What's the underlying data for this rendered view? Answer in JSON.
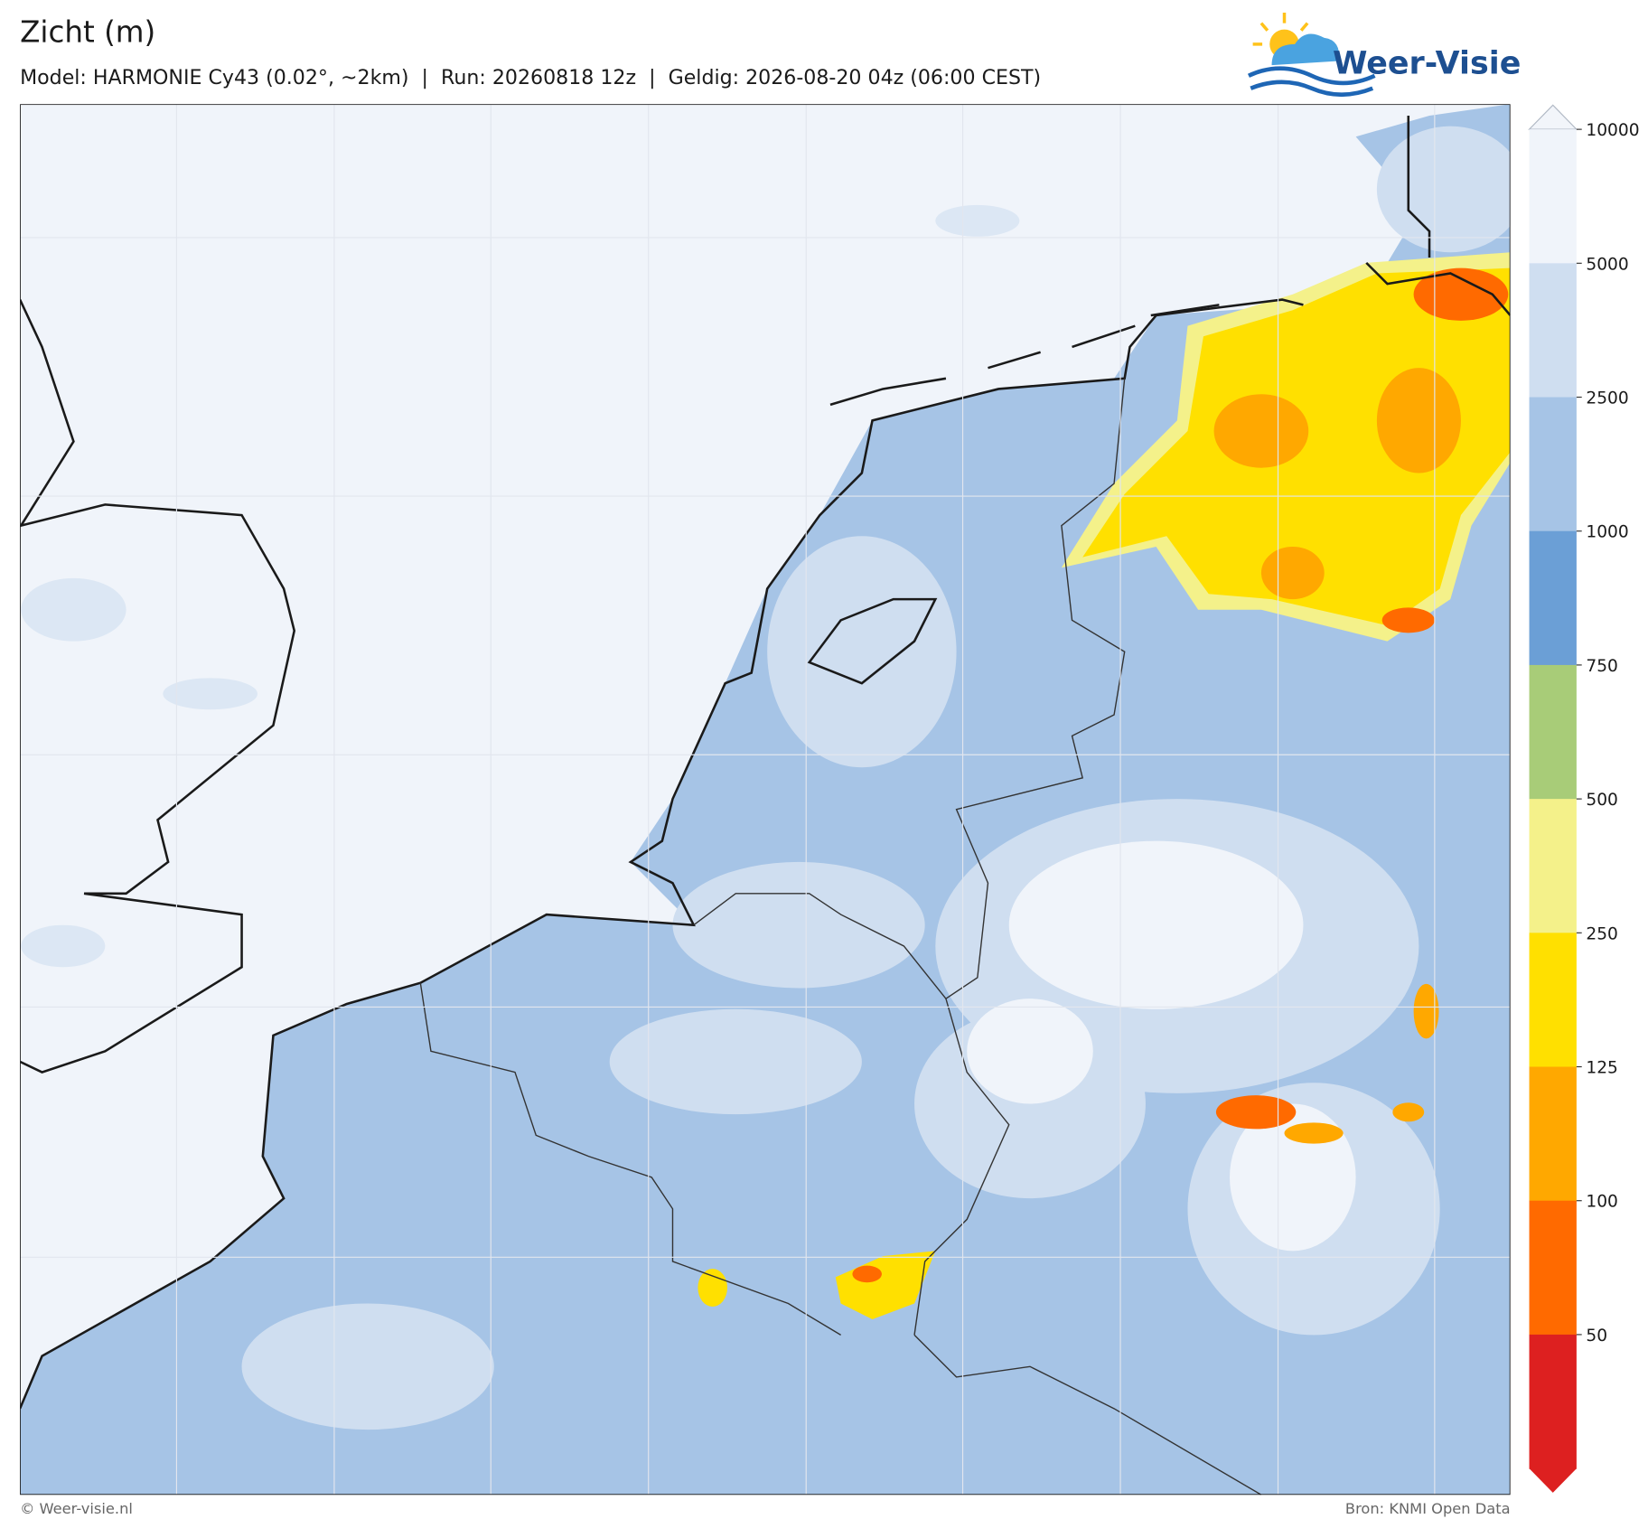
{
  "header": {
    "title": "Zicht (m)",
    "subtitle": "Model: HARMONIE Cy43 (0.02°, ~2km)  |  Run: 20260818 12z  |  Geldig: 2026-08-20 04z (06:00 CEST)",
    "logo": "Weer-Visie"
  },
  "colorbar": {
    "ticks": [
      10000,
      5000,
      2500,
      1000,
      750,
      500,
      250,
      125,
      100,
      50
    ],
    "colors": [
      "#f2f5fa",
      "#f0f4fa",
      "#cfdef0",
      "#a6c4e6",
      "#6b9fd6",
      "#a8cc78",
      "#f4f18a",
      "#ffe000",
      "#ffa800",
      "#ff6a00",
      "#dd2020",
      "#dd2020"
    ]
  },
  "footer": {
    "copyright": "© Weer-visie.nl",
    "source": "Bron: KNMI Open Data"
  }
}
